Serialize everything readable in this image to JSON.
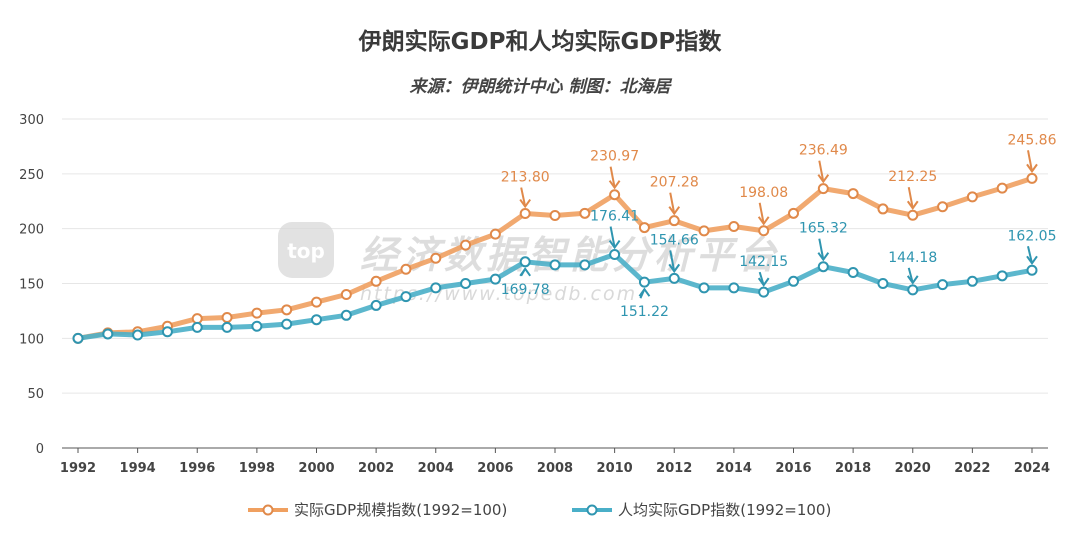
{
  "title": "伊朗实际GDP和人均实际GDP指数",
  "subtitle": "来源：伊朗统计中心 制图：北海居",
  "watermark": {
    "logo": "top",
    "text": "经济数据智能分析平台",
    "url": "https://www.topedb.com"
  },
  "colors": {
    "gdp": "#f0a060",
    "gdp_dark": "#e0894a",
    "pc": "#4aafc8",
    "pc_dark": "#2f95b0",
    "grid": "#e6e6e6"
  },
  "chart_data": {
    "type": "line",
    "title": "伊朗实际GDP和人均实际GDP指数",
    "xlabel": "",
    "ylabel": "",
    "ylim": [
      0,
      300
    ],
    "yticks": [
      0,
      50,
      100,
      150,
      200,
      250,
      300
    ],
    "xlim": [
      1992,
      2024
    ],
    "xticks": [
      1992,
      1994,
      1996,
      1998,
      2000,
      2002,
      2004,
      2006,
      2008,
      2010,
      2012,
      2014,
      2016,
      2018,
      2020,
      2022,
      2024
    ],
    "grid": true,
    "legend": "bottom",
    "x": [
      1992,
      1993,
      1994,
      1995,
      1996,
      1997,
      1998,
      1999,
      2000,
      2001,
      2002,
      2003,
      2004,
      2005,
      2006,
      2007,
      2008,
      2009,
      2010,
      2011,
      2012,
      2013,
      2014,
      2015,
      2016,
      2017,
      2018,
      2019,
      2020,
      2021,
      2022,
      2023,
      2024
    ],
    "series": [
      {
        "name": "实际GDP规模指数(1992=100)",
        "values": [
          100,
          105,
          106,
          111,
          118,
          119,
          123,
          126,
          133,
          140,
          152,
          163,
          173,
          185,
          195,
          213.8,
          212,
          214,
          230.97,
          201,
          207.28,
          198,
          202,
          198.08,
          214,
          236.49,
          232,
          218,
          212.25,
          220,
          229,
          237,
          245.86
        ],
        "annotations": [
          {
            "x": 2007,
            "label": "213.80"
          },
          {
            "x": 2010,
            "label": "230.97"
          },
          {
            "x": 2012,
            "label": "207.28"
          },
          {
            "x": 2015,
            "label": "198.08"
          },
          {
            "x": 2017,
            "label": "236.49"
          },
          {
            "x": 2020,
            "label": "212.25"
          },
          {
            "x": 2024,
            "label": "245.86"
          }
        ]
      },
      {
        "name": "人均实际GDP指数(1992=100)",
        "values": [
          100,
          104,
          103,
          106,
          110,
          110,
          111,
          113,
          117,
          121,
          130,
          138,
          146,
          150,
          154,
          169.78,
          167,
          167,
          176.41,
          151.22,
          154.66,
          146,
          146,
          142.15,
          152,
          165.32,
          160,
          150,
          144.18,
          149,
          152,
          157,
          162.05
        ],
        "annotations": [
          {
            "x": 2007,
            "label": "169.78"
          },
          {
            "x": 2010,
            "label": "176.41"
          },
          {
            "x": 2011,
            "label": "151.22"
          },
          {
            "x": 2012,
            "label": "154.66"
          },
          {
            "x": 2015,
            "label": "142.15"
          },
          {
            "x": 2017,
            "label": "165.32"
          },
          {
            "x": 2020,
            "label": "144.18"
          },
          {
            "x": 2024,
            "label": "162.05"
          }
        ]
      }
    ]
  }
}
